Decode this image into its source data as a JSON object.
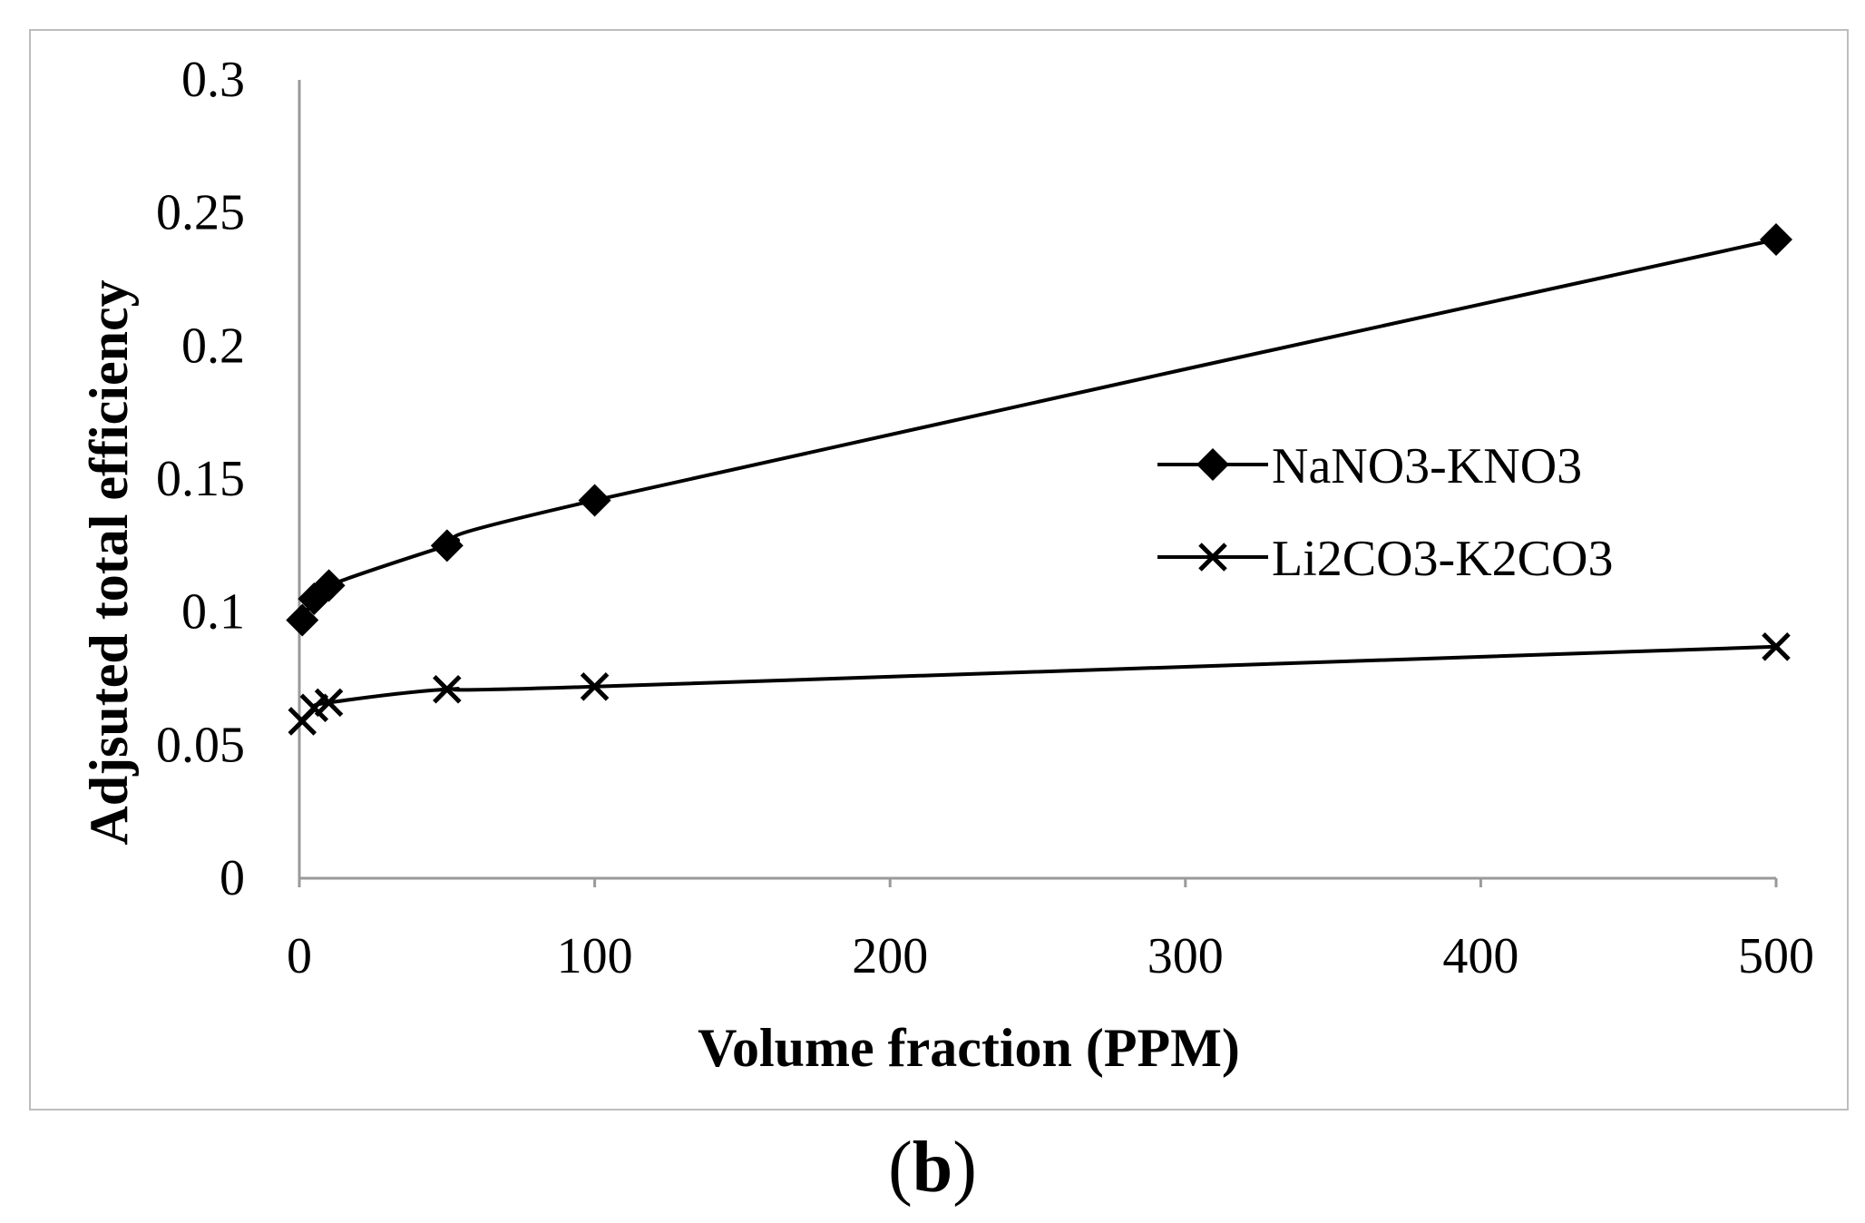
{
  "chart_data": {
    "type": "line",
    "title": "",
    "xlabel": "Volume fraction (PPM)",
    "ylabel": "Adjsuted total efficiency",
    "xlim": [
      0,
      500
    ],
    "ylim": [
      0,
      0.3
    ],
    "xticks": [
      0,
      100,
      200,
      300,
      400,
      500
    ],
    "xtick_labels": [
      "0",
      "100",
      "200",
      "300",
      "400",
      "500"
    ],
    "yticks": [
      0,
      0.05,
      0.1,
      0.15,
      0.2,
      0.25,
      0.3
    ],
    "ytick_labels": [
      "0",
      "0.05",
      "0.1",
      "0.15",
      "0.2",
      "0.25",
      "0.3"
    ],
    "grid": false,
    "legend_position": "right",
    "series": [
      {
        "name": "NaNO3-KNO3",
        "marker": "diamond",
        "color": "#000000",
        "x": [
          1,
          5,
          10,
          50,
          100,
          500
        ],
        "y": [
          0.097,
          0.105,
          0.11,
          0.125,
          0.142,
          0.24
        ]
      },
      {
        "name": "Li2CO3-K2CO3",
        "marker": "x",
        "color": "#000000",
        "x": [
          1,
          5,
          10,
          50,
          100,
          500
        ],
        "y": [
          0.059,
          0.064,
          0.066,
          0.071,
          0.072,
          0.087
        ]
      }
    ]
  },
  "panel": {
    "open": "(",
    "letter": "b",
    "close": ")"
  }
}
